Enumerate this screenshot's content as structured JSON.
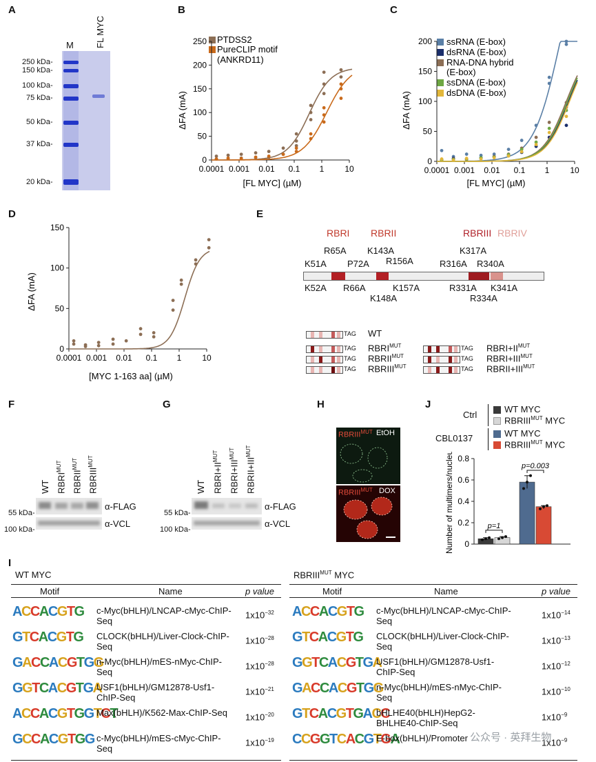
{
  "panels": {
    "A": "A",
    "B": "B",
    "C": "C",
    "D": "D",
    "E": "E",
    "F": "F",
    "G": "G",
    "H": "H",
    "I": "I",
    "J": "J"
  },
  "panel_a": {
    "lane_m": "M",
    "lane_fl": "FL MYC",
    "markers": [
      "250 kDa-",
      "150 kDa-",
      "100 kDa-",
      "75 kDa-",
      "50 kDa-",
      "37 kDa-",
      "20 kDa-"
    ],
    "gel_color": "#b9bde6",
    "band_color": "#2236c8"
  },
  "chart_data": [
    {
      "id": "B",
      "type": "scatter",
      "xscale": "log",
      "xlabel": "[FL MYC] (µM)",
      "ylabel": "ΔFA (mA)",
      "xticks": [
        "0.0001",
        "0.001",
        "0.01",
        "0.1",
        "1",
        "10"
      ],
      "yticks": [
        "0",
        "50",
        "100",
        "150",
        "200",
        "250"
      ],
      "ylim": [
        0,
        250
      ],
      "legend": [
        "PTDSS2",
        "PureCLIP motif",
        "(ANKRD11)"
      ],
      "series": [
        {
          "name": "PTDSS2",
          "color": "#8c6e55",
          "curve": {
            "top": 195,
            "ec50": 0.35,
            "hill": 1.1
          },
          "points": [
            [
              0.00015,
              8
            ],
            [
              0.00015,
              2
            ],
            [
              0.0004,
              10
            ],
            [
              0.0004,
              3
            ],
            [
              0.0012,
              12
            ],
            [
              0.0012,
              4
            ],
            [
              0.004,
              15
            ],
            [
              0.004,
              5
            ],
            [
              0.012,
              18
            ],
            [
              0.012,
              6
            ],
            [
              0.04,
              25
            ],
            [
              0.04,
              12
            ],
            [
              0.12,
              55
            ],
            [
              0.12,
              40
            ],
            [
              0.4,
              100
            ],
            [
              0.4,
              85
            ],
            [
              1.2,
              160
            ],
            [
              1.2,
              140
            ],
            [
              5,
              190
            ],
            [
              5,
              175
            ],
            [
              0.12,
              30
            ],
            [
              0.4,
              115
            ],
            [
              1.2,
              185
            ]
          ]
        },
        {
          "name": "PureCLIP motif (ANKRD11)",
          "color": "#c96a1b",
          "curve": {
            "top": 200,
            "ec50": 1.5,
            "hill": 1.0
          },
          "points": [
            [
              0.00015,
              2
            ],
            [
              0.0004,
              4
            ],
            [
              0.0012,
              3
            ],
            [
              0.004,
              6
            ],
            [
              0.012,
              8
            ],
            [
              0.04,
              12
            ],
            [
              0.12,
              25
            ],
            [
              0.12,
              18
            ],
            [
              0.4,
              55
            ],
            [
              0.4,
              45
            ],
            [
              1.2,
              95
            ],
            [
              1.2,
              110
            ],
            [
              5,
              160
            ],
            [
              5,
              150
            ],
            [
              1.2,
              80
            ],
            [
              5,
              130
            ]
          ]
        }
      ]
    },
    {
      "id": "C",
      "type": "scatter",
      "xscale": "log",
      "xlabel": "[FL MYC] (µM)",
      "ylabel": "ΔFA (mA)",
      "xticks": [
        "0.0001",
        "0.001",
        "0.01",
        "0.1",
        "1",
        "10"
      ],
      "yticks": [
        "0",
        "50",
        "100",
        "150",
        "200"
      ],
      "ylim": [
        0,
        200
      ],
      "legend": [
        "ssRNA (E-box)",
        "dsRNA (E-box)",
        "RNA-DNA hybrid",
        "(E-box)",
        "ssDNA (E-box)",
        "dsDNA (E-box)"
      ],
      "series": [
        {
          "name": "ssRNA (E-box)",
          "color": "#5a7fa6",
          "curve": {
            "top": 400,
            "ec50": 3,
            "hill": 0.9
          },
          "points": [
            [
              0.00015,
              18
            ],
            [
              0.0004,
              8
            ],
            [
              0.0012,
              12
            ],
            [
              0.004,
              10
            ],
            [
              0.012,
              12
            ],
            [
              0.04,
              20
            ],
            [
              0.12,
              35
            ],
            [
              0.4,
              60
            ],
            [
              1.2,
              140
            ],
            [
              1.2,
              130
            ],
            [
              5,
              195
            ],
            [
              5,
              200
            ]
          ]
        },
        {
          "name": "dsRNA (E-box)",
          "color": "#1a2e6b",
          "curve": {
            "top": 200,
            "ec50": 6,
            "hill": 1.0
          },
          "points": [
            [
              0.00015,
              3
            ],
            [
              0.0004,
              5
            ],
            [
              0.0012,
              4
            ],
            [
              0.004,
              6
            ],
            [
              0.012,
              8
            ],
            [
              0.04,
              10
            ],
            [
              0.12,
              15
            ],
            [
              0.4,
              25
            ],
            [
              1.2,
              40
            ],
            [
              5,
              60
            ]
          ]
        },
        {
          "name": "RNA-DNA hybrid (E-box)",
          "color": "#8c6e55",
          "curve": {
            "top": 200,
            "ec50": 5,
            "hill": 1.0
          },
          "points": [
            [
              0.00015,
              2
            ],
            [
              0.0004,
              4
            ],
            [
              0.0012,
              3
            ],
            [
              0.004,
              5
            ],
            [
              0.012,
              8
            ],
            [
              0.04,
              12
            ],
            [
              0.12,
              22
            ],
            [
              0.4,
              40
            ],
            [
              1.2,
              65
            ],
            [
              5,
              98
            ],
            [
              5,
              90
            ]
          ]
        },
        {
          "name": "ssDNA (E-box)",
          "color": "#6ea743",
          "curve": {
            "top": 200,
            "ec50": 5.5,
            "hill": 1.0
          },
          "points": [
            [
              0.00015,
              2
            ],
            [
              0.0004,
              3
            ],
            [
              0.0012,
              4
            ],
            [
              0.004,
              6
            ],
            [
              0.012,
              7
            ],
            [
              0.04,
              11
            ],
            [
              0.12,
              20
            ],
            [
              0.4,
              32
            ],
            [
              1.2,
              55
            ],
            [
              5,
              85
            ]
          ]
        },
        {
          "name": "dsDNA (E-box)",
          "color": "#e2b73a",
          "curve": {
            "top": 200,
            "ec50": 6.5,
            "hill": 1.0
          },
          "points": [
            [
              0.00015,
              4
            ],
            [
              0.0004,
              2
            ],
            [
              0.0012,
              5
            ],
            [
              0.004,
              4
            ],
            [
              0.012,
              6
            ],
            [
              0.04,
              9
            ],
            [
              0.12,
              16
            ],
            [
              0.4,
              28
            ],
            [
              1.2,
              48
            ],
            [
              5,
              75
            ]
          ]
        }
      ]
    },
    {
      "id": "D",
      "type": "scatter",
      "xscale": "log",
      "xlabel": "[MYC 1-163 aa] (µM)",
      "ylabel": "ΔFA (mA)",
      "xticks": [
        "0.0001",
        "0.001",
        "0.01",
        "0.1",
        "1",
        "10"
      ],
      "yticks": [
        "0",
        "50",
        "100",
        "150"
      ],
      "ylim": [
        0,
        150
      ],
      "series": [
        {
          "name": "MYC 1-163 aa",
          "color": "#8c6e55",
          "curve": {
            "top": 125,
            "ec50": 1.6,
            "hill": 1.6
          },
          "points": [
            [
              0.00015,
              10
            ],
            [
              0.00015,
              6
            ],
            [
              0.0004,
              5
            ],
            [
              0.0004,
              3
            ],
            [
              0.0012,
              8
            ],
            [
              0.0012,
              4
            ],
            [
              0.004,
              12
            ],
            [
              0.004,
              6
            ],
            [
              0.012,
              10
            ],
            [
              0.04,
              25
            ],
            [
              0.04,
              18
            ],
            [
              0.12,
              20
            ],
            [
              0.12,
              15
            ],
            [
              0.6,
              60
            ],
            [
              0.6,
              48
            ],
            [
              1.2,
              85
            ],
            [
              1.2,
              80
            ],
            [
              4,
              110
            ],
            [
              4,
              105
            ],
            [
              12,
              135
            ],
            [
              12,
              125
            ]
          ]
        }
      ]
    },
    {
      "id": "J",
      "type": "bar",
      "ylabel": "Number of multimers/nucleus",
      "yticks": [
        "0",
        "0.2",
        "0.4",
        "0.6",
        "0.8"
      ],
      "ylim": [
        0,
        0.8
      ],
      "categories": [
        "WT MYC Ctrl",
        "RBRIII MUT MYC Ctrl",
        "WT MYC CBL0137",
        "RBRIII MUT MYC CBL0137"
      ],
      "values": [
        0.05,
        0.06,
        0.58,
        0.35
      ],
      "points": [
        [
          0.04,
          0.05,
          0.06
        ],
        [
          0.05,
          0.06,
          0.07
        ],
        [
          0.52,
          0.58,
          0.64
        ],
        [
          0.33,
          0.35,
          0.36
        ]
      ],
      "colors": [
        "#3a3a3a",
        "#d7d7d7",
        "#4f6b8f",
        "#d84a34"
      ],
      "annotations": [
        "p=1",
        "p=0.003"
      ]
    }
  ],
  "panel_j_legend": {
    "ctrl": "Ctrl",
    "cbl": "CBL0137",
    "items": [
      {
        "label": "WT MYC",
        "color": "#3a3a3a"
      },
      {
        "label": "RBRIII MYC",
        "color": "#d7d7d7"
      },
      {
        "label": "WT MYC",
        "color": "#4f6b8f"
      },
      {
        "label": "RBRIII MYC",
        "color": "#d84a34"
      }
    ],
    "mut": "MUT"
  },
  "panel_e": {
    "regions": [
      "RBRI",
      "RBRII",
      "RBRIII",
      "RBRIV"
    ],
    "region_colors": [
      "#c0392b",
      "#c0392b",
      "#b0222a",
      "#e0a09a"
    ],
    "mutations_top": [
      "K51A",
      "R65A",
      "P72A",
      "K143A",
      "R156A",
      "K317A",
      "R316A",
      "R340A"
    ],
    "mutations_bottom": [
      "K52A",
      "R66A",
      "K157A",
      "K148A",
      "R331A",
      "K341A",
      "R334A"
    ],
    "constructs": [
      "WT",
      "RBRI",
      "RBRII",
      "RBRIII",
      "RBRI+II",
      "RBRI+III",
      "RBRII+III"
    ],
    "mut": "MUT",
    "tag": "TAG"
  },
  "panel_f": {
    "lanes": [
      "WT",
      "RBRI",
      "RBRII",
      "RBRIII"
    ],
    "mut": "MUT",
    "markers": [
      "55 kDa-",
      "100 kDa-"
    ],
    "labels": [
      "α-FLAG",
      "α-VCL"
    ]
  },
  "panel_g": {
    "lanes": [
      "WT",
      "RBRI+II",
      "RBRI+III",
      "RBRII+III"
    ],
    "mut": "MUT",
    "markers": [
      "55 kDa-",
      "100 kDa-"
    ],
    "labels": [
      "α-FLAG",
      "α-VCL"
    ]
  },
  "panel_h": {
    "top_label_a": "RBRIII",
    "top_label_b": "EtOH",
    "bottom_label_a": "RBRIII",
    "bottom_label_b": "DOX",
    "mut": "MUT"
  },
  "panel_i": {
    "left_title": "WT MYC",
    "right_title_a": "RBRIII",
    "right_title_b": "MYC",
    "mut": "MUT",
    "headers": [
      "Motif",
      "Name",
      "p value"
    ],
    "left_rows": [
      {
        "logo": "ACCACGTG",
        "name": "c-Myc(bHLH)/LNCAP-cMyc-ChIP-Seq",
        "p": "1x10",
        "exp": "−32"
      },
      {
        "logo": "GTCACGTG",
        "name": "CLOCK(bHLH)/Liver-Clock-ChIP-Seq",
        "p": "1x10",
        "exp": "−28"
      },
      {
        "logo": "GACCACGTGG",
        "name": "n-Myc(bHLH)/mES-nMyc-ChIP-Seq",
        "p": "1x10",
        "exp": "−28"
      },
      {
        "logo": "GGTCACGTGA",
        "name": "USF1(bHLH)/GM12878-Usf1-ChIP-Seq",
        "p": "1x10",
        "exp": "−21"
      },
      {
        "logo": "ACCACGTGGTCT",
        "name": "Max(bHLH)/K562-Max-ChIP-Seq",
        "p": "1x10",
        "exp": "−20"
      },
      {
        "logo": "GCCACGTGG",
        "name": "c-Myc(bHLH)/mES-cMyc-ChIP-Seq",
        "p": "1x10",
        "exp": "−19"
      }
    ],
    "right_rows": [
      {
        "logo": "ACCACGTG",
        "name": "c-Myc(bHLH)/LNCAP-cMyc-ChIP-Seq",
        "p": "1x10",
        "exp": "−14"
      },
      {
        "logo": "GTCACGTG",
        "name": "CLOCK(bHLH)/Liver-Clock-ChIP-Seq",
        "p": "1x10",
        "exp": "−13"
      },
      {
        "logo": "GGTCACGTGA",
        "name": "USF1(bHLH)/GM12878-Usf1-ChIP-Seq",
        "p": "1x10",
        "exp": "−12"
      },
      {
        "logo": "GACCACGTGG",
        "name": "n-Myc(bHLH)/mES-nMyc-ChIP-Seq",
        "p": "1x10",
        "exp": "−10"
      },
      {
        "logo": "GTCACGTGACC",
        "name": "bHLHE40(bHLH)HepG2-BHLHE40-ChIP-Seq",
        "p": "1x10",
        "exp": "−9"
      },
      {
        "logo": "CCGGTCACGTGA",
        "name": "E-box(bHLH)/Promoter",
        "p": "1x10",
        "exp": "−9"
      }
    ]
  },
  "watermark": "公众号 · 英拜生物"
}
